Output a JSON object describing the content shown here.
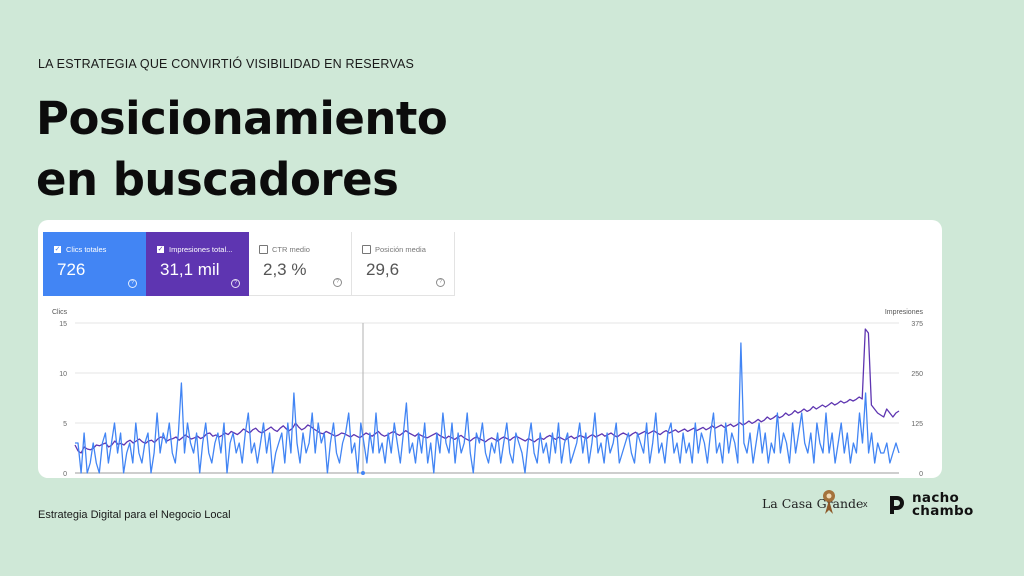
{
  "slide": {
    "eyebrow": "LA ESTRATEGIA QUE CONVIRTIÓ VISIBILIDAD EN RESERVAS",
    "title_line1": "Posicionamiento",
    "title_line2": "en buscadores",
    "footer_text": "Estrategia Digital para el Negocio Local",
    "brand_left": "La Casa Grande",
    "brand_separator": "x",
    "brand_right_line1": "nacho",
    "brand_right_line2": "chambo"
  },
  "metrics": [
    {
      "label": "Clics totales",
      "value": "726",
      "checked": true,
      "color": "#4285f4"
    },
    {
      "label": "Impresiones total...",
      "value": "31,1 mil",
      "checked": true,
      "color": "#5e35b1"
    },
    {
      "label": "CTR medio",
      "value": "2,3 %",
      "checked": false
    },
    {
      "label": "Posición media",
      "value": "29,6",
      "checked": false
    }
  ],
  "chart_data": {
    "type": "line",
    "left_axis": {
      "label": "Clics",
      "ticks": [
        "15",
        "10",
        "5",
        "0"
      ],
      "range": [
        0,
        15
      ]
    },
    "right_axis": {
      "label": "Impresiones",
      "ticks": [
        "375",
        "250",
        "125",
        "0"
      ],
      "range": [
        0,
        375
      ]
    },
    "grid": true,
    "series": [
      {
        "name": "Clics totales",
        "axis": "left",
        "color": "#4285f4",
        "values": [
          3,
          3,
          0,
          4,
          0,
          1,
          3,
          1,
          0,
          3,
          4,
          1,
          3,
          5,
          2,
          4,
          0,
          2,
          3,
          1,
          5,
          2,
          1,
          3,
          4,
          0,
          2,
          6,
          2,
          4,
          3,
          5,
          2,
          1,
          4,
          9,
          2,
          5,
          3,
          2,
          4,
          0,
          3,
          5,
          2,
          1,
          3,
          4,
          2,
          5,
          0,
          3,
          4,
          2,
          3,
          1,
          4,
          6,
          2,
          3,
          1,
          3,
          5,
          2,
          4,
          0,
          2,
          3,
          4,
          1,
          5,
          2,
          8,
          3,
          1,
          4,
          2,
          3,
          6,
          2,
          5,
          3,
          4,
          0,
          3,
          5,
          2,
          1,
          3,
          4,
          6,
          2,
          3,
          0,
          5,
          3,
          1,
          4,
          2,
          6,
          2,
          3,
          1,
          4,
          2,
          5,
          3,
          1,
          4,
          7,
          2,
          3,
          1,
          4,
          2,
          5,
          1,
          3,
          0,
          4,
          2,
          6,
          3,
          2,
          5,
          1,
          4,
          2,
          3,
          6,
          2,
          0,
          4,
          3,
          5,
          2,
          1,
          3,
          2,
          4,
          1,
          3,
          5,
          2,
          1,
          4,
          3,
          2,
          0,
          3,
          5,
          2,
          1,
          4,
          2,
          3,
          1,
          4,
          2,
          5,
          1,
          3,
          4,
          1,
          2,
          3,
          5,
          2,
          4,
          1,
          3,
          6,
          2,
          3,
          1,
          4,
          2,
          3,
          5,
          1,
          2,
          3,
          4,
          2,
          1,
          4,
          3,
          2,
          5,
          1,
          3,
          6,
          2,
          3,
          1,
          4,
          5,
          2,
          3,
          1,
          4,
          2,
          3,
          1,
          5,
          2,
          4,
          3,
          1,
          4,
          6,
          2,
          3,
          1,
          5,
          2,
          4,
          3,
          1,
          13,
          3,
          2,
          4,
          1,
          3,
          5,
          2,
          4,
          1,
          3,
          2,
          6,
          2,
          4,
          3,
          1,
          5,
          2,
          4,
          6,
          3,
          2,
          4,
          1,
          5,
          3,
          2,
          6,
          2,
          4,
          1,
          3,
          5,
          2,
          4,
          1,
          3,
          2,
          6,
          3,
          8,
          2,
          4,
          1,
          3,
          2,
          2,
          3,
          1,
          2,
          3,
          2
        ]
      },
      {
        "name": "Impresiones totales",
        "axis": "right",
        "color": "#5e35b1",
        "values": [
          70,
          55,
          50,
          65,
          60,
          58,
          62,
          70,
          68,
          72,
          75,
          65,
          70,
          80,
          72,
          74,
          70,
          78,
          82,
          75,
          80,
          85,
          78,
          74,
          80,
          82,
          76,
          85,
          90,
          88,
          80,
          84,
          86,
          90,
          82,
          88,
          95,
          90,
          85,
          88,
          92,
          86,
          90,
          98,
          100,
          92,
          95,
          90,
          94,
          100,
          96,
          104,
          100,
          96,
          102,
          110,
          105,
          100,
          108,
          112,
          104,
          100,
          105,
          110,
          115,
          108,
          104,
          112,
          118,
          110,
          106,
          112,
          125,
          115,
          108,
          112,
          120,
          116,
          110,
          105,
          100,
          98,
          104,
          100,
          96,
          92,
          95,
          100,
          98,
          94,
          90,
          96,
          92,
          88,
          94,
          100,
          96,
          92,
          98,
          104,
          96,
          92,
          95,
          100,
          104,
          98,
          94,
          100,
          106,
          100,
          96,
          92,
          98,
          94,
          90,
          88,
          92,
          96,
          100,
          94,
          90,
          86,
          92,
          88,
          84,
          90,
          94,
          88,
          84,
          80,
          86,
          90,
          86,
          82,
          78,
          84,
          88,
          84,
          80,
          86,
          90,
          86,
          82,
          88,
          92,
          88,
          84,
          80,
          86,
          82,
          78,
          84,
          88,
          84,
          90,
          94,
          88,
          84,
          90,
          86,
          82,
          88,
          92,
          86,
          90,
          94,
          90,
          86,
          92,
          96,
          90,
          94,
          98,
          92,
          96,
          100,
          94,
          90,
          96,
          100,
          96,
          92,
          98,
          102,
          96,
          100,
          104,
          98,
          102,
          106,
          100,
          96,
          102,
          106,
          100,
          104,
          108,
          102,
          106,
          110,
          104,
          108,
          112,
          106,
          110,
          114,
          108,
          112,
          118,
          112,
          116,
          120,
          114,
          118,
          122,
          116,
          120,
          126,
          120,
          124,
          130,
          124,
          128,
          134,
          128,
          132,
          140,
          134,
          138,
          144,
          138,
          142,
          150,
          144,
          148,
          156,
          150,
          154,
          160,
          154,
          158,
          166,
          160,
          165,
          170,
          165,
          170,
          176,
          170,
          174,
          180,
          175,
          178,
          184,
          180,
          184,
          190,
          185,
          360,
          350,
          170,
          160,
          150,
          145,
          140,
          160,
          150,
          140,
          150,
          155
        ]
      }
    ]
  }
}
